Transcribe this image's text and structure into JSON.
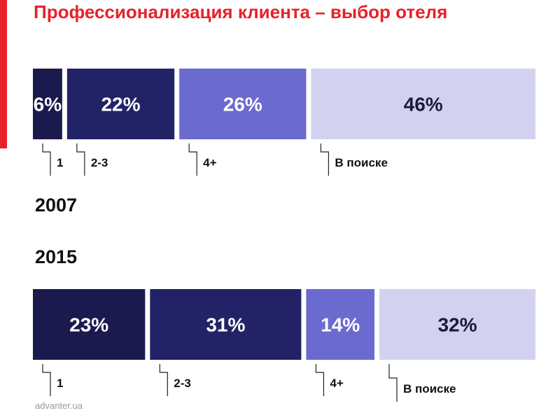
{
  "title": "Профессионализация клиента – выбор отеля",
  "footer": "advanter.ua",
  "colors": {
    "accent": "#e8202a",
    "segments": [
      "#1a1a4e",
      "#222266",
      "#6a6acf",
      "#d2d2f0"
    ],
    "label_text_dark": "#ffffff",
    "label_text_light": "#1a1a3a"
  },
  "chart_data": [
    {
      "type": "bar",
      "orientation": "horizontal-stacked",
      "year_label": "2007",
      "categories": [
        "1",
        "2-3",
        "4+",
        "В поиске"
      ],
      "values": [
        6,
        22,
        26,
        46
      ],
      "value_labels": [
        "6%",
        "22%",
        "26%",
        "46%"
      ]
    },
    {
      "type": "bar",
      "orientation": "horizontal-stacked",
      "year_label": "2015",
      "categories": [
        "1",
        "2-3",
        "4+",
        "В поиске"
      ],
      "values": [
        23,
        31,
        14,
        32
      ],
      "value_labels": [
        "23%",
        "31%",
        "14%",
        "32%"
      ]
    }
  ]
}
